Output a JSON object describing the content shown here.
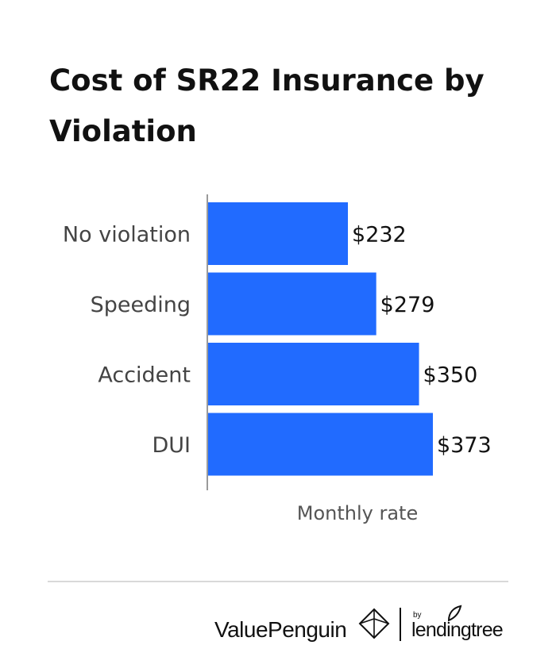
{
  "title": "Cost of SR22 Insurance by Violation",
  "chart_data": {
    "type": "bar",
    "orientation": "horizontal",
    "categories": [
      "No violation",
      "Speeding",
      "Accident",
      "DUI"
    ],
    "values": [
      232,
      279,
      350,
      373
    ],
    "value_labels": [
      "$232",
      "$279",
      "$350",
      "$373"
    ],
    "xlabel": "Monthly rate",
    "ylabel": "",
    "xlim": [
      0,
      400
    ],
    "grid": false,
    "bar_color": "#216bff"
  },
  "footer": {
    "brand": "ValuePenguin",
    "by": "by",
    "partner": "lendingtree"
  }
}
